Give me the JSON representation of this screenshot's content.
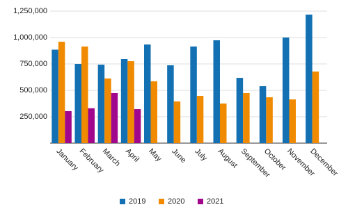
{
  "chart_data": {
    "type": "bar",
    "categories": [
      "January",
      "February",
      "March",
      "April",
      "May",
      "June",
      "July",
      "August",
      "September",
      "October",
      "November",
      "December"
    ],
    "series": [
      {
        "name": "2019",
        "color": "#1270b3",
        "values": [
          885000,
          750000,
          743000,
          796000,
          934000,
          737000,
          915000,
          974000,
          618000,
          539000,
          1000000,
          1217000
        ]
      },
      {
        "name": "2020",
        "color": "#f08a00",
        "values": [
          960000,
          915000,
          612000,
          776000,
          585000,
          395000,
          447000,
          375000,
          474000,
          434000,
          414000,
          678000
        ]
      },
      {
        "name": "2021",
        "color": "#a0078c",
        "values": [
          303000,
          330000,
          474000,
          322000,
          null,
          null,
          null,
          null,
          null,
          null,
          null,
          null
        ]
      }
    ],
    "ylim": [
      0,
      1250000
    ],
    "yticks": [
      {
        "value": 250000,
        "label": "250,000"
      },
      {
        "value": 500000,
        "label": "500,000"
      },
      {
        "value": 750000,
        "label": "750,000"
      },
      {
        "value": 1000000,
        "label": "1,000,000"
      },
      {
        "value": 1250000,
        "label": "1,250,000"
      }
    ],
    "grid": true,
    "legend": "bottom"
  }
}
